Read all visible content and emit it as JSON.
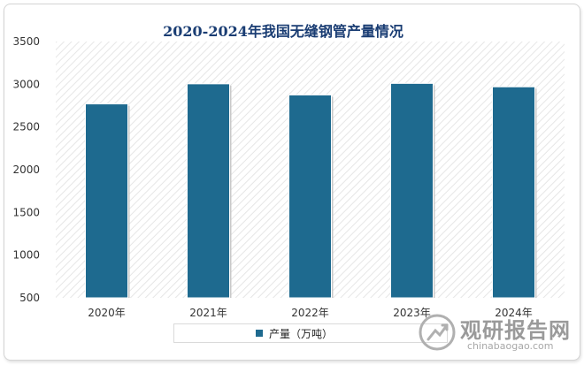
{
  "chart_data": {
    "type": "bar",
    "title": "2020-2024年我国无缝钢管产量情况",
    "categories": [
      "2020年",
      "2021年",
      "2022年",
      "2023年",
      "2024年"
    ],
    "series": [
      {
        "name": "产量（万吨）",
        "values": [
          2770,
          3005,
          2875,
          3010,
          2970
        ]
      }
    ],
    "ylim": [
      500,
      3500
    ],
    "yticks": [
      500,
      1000,
      1500,
      2000,
      2500,
      3000,
      3500
    ],
    "grid": false,
    "legend_position": "bottom",
    "bar_color": "#1e6a8f"
  },
  "watermark": {
    "name": "观研报告网",
    "url": "chinabaogao.com"
  }
}
